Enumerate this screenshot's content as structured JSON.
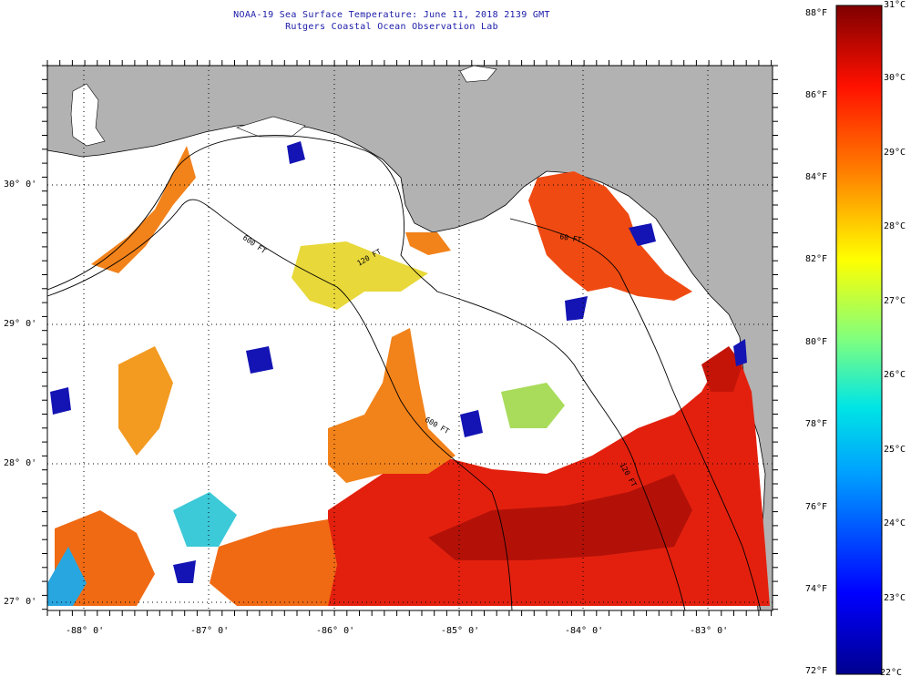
{
  "header": {
    "title": "NOAA-19 Sea Surface Temperature:  June 11, 2018 2139 GMT",
    "subtitle": "Rutgers Coastal Ocean Observation Lab"
  },
  "map": {
    "lat_labels": [
      "30° 0'",
      "29° 0'",
      "28° 0'",
      "27° 0'"
    ],
    "lon_labels": [
      "-88° 0'",
      "-87° 0'",
      "-86° 0'",
      "-85° 0'",
      "-84° 0'",
      "-83° 0'"
    ],
    "contour_labels": [
      "600 FT",
      "120 FT",
      "600 FT",
      "120 FT",
      "60 FT"
    ],
    "colors": {
      "land": "#b2b2b2",
      "cloud": "#ffffff",
      "hot": "#e3200e",
      "warm": "#f2821a"
    }
  },
  "colorbar": {
    "fahrenheit_labels": [
      "88°F",
      "86°F",
      "84°F",
      "82°F",
      "80°F",
      "78°F",
      "76°F",
      "74°F",
      "72°F"
    ],
    "celsius_labels": [
      "31°C",
      "30°C",
      "29°C",
      "28°C",
      "27°C",
      "26°C",
      "25°C",
      "24°C",
      "23°C",
      "22°C"
    ],
    "range_f": [
      72,
      88
    ],
    "range_c": [
      22,
      31
    ]
  }
}
